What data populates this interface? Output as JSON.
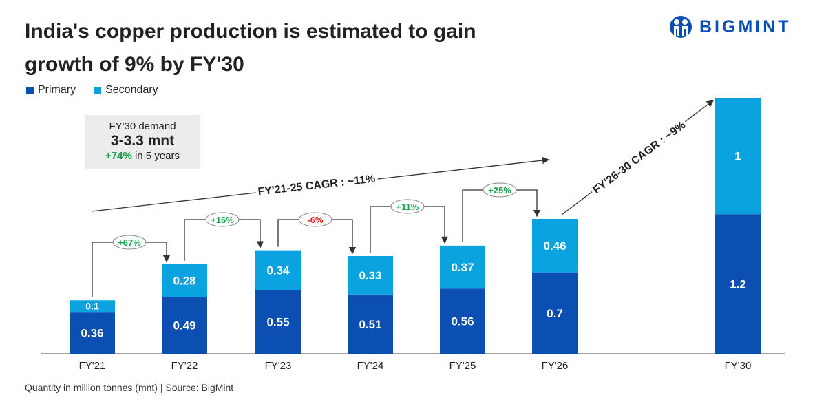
{
  "title": "India's copper production is estimated to gain growth of 9% by FY'30",
  "brand": "BIGMINT",
  "info_box": {
    "line1": "FY'30 demand",
    "line2": "3-3.3 mnt",
    "growth": "+74%",
    "growth_suffix": " in 5 years"
  },
  "footer": "Quantity in million tonnes (mnt)  |  Source: BigMint",
  "colors": {
    "primary": "#0b4fb3",
    "secondary": "#0aa3e0",
    "positive": "#1aa34a",
    "negative": "#e02020"
  },
  "chart_data": {
    "type": "bar",
    "stacked": true,
    "categories": [
      "FY'21",
      "FY'22",
      "FY'23",
      "FY'24",
      "FY'25",
      "FY'26",
      "FY'30"
    ],
    "series": [
      {
        "name": "Primary",
        "values": [
          0.36,
          0.49,
          0.55,
          0.51,
          0.56,
          0.7,
          1.2
        ]
      },
      {
        "name": "Secondary",
        "values": [
          0.1,
          0.28,
          0.34,
          0.33,
          0.37,
          0.46,
          1
        ]
      }
    ],
    "growth_labels": [
      "+67%",
      "+16%",
      "-6%",
      "+11%",
      "+25%"
    ],
    "annotations": [
      "FY'21-25 CAGR : ~11%",
      "FY'26-30 CAGR : ~9%"
    ],
    "legend": "top-left",
    "grid": false
  }
}
